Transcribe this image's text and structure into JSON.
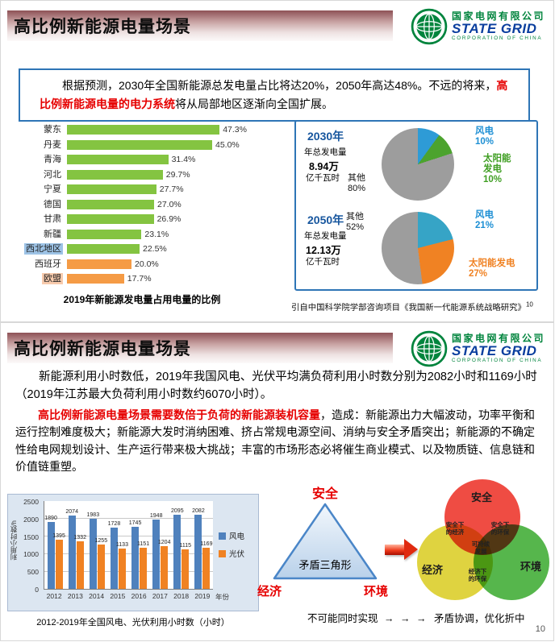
{
  "theme": {
    "emphasis_red": "#e60000",
    "box_border_blue": "#2e75b6",
    "logo_green": "#00843d",
    "logo_blue": "#0a3e9e",
    "title_band_red": "#8e5156"
  },
  "logo": {
    "company": "国家电网有限公司",
    "brand": "STATE GRID",
    "sub": "CORPORATION OF CHINA"
  },
  "slide1": {
    "title": "高比例新能源电量场景",
    "intro_pre": "根据预测，2030年全国新能源总发电量占比将达20%，2050年高达48%。不远的将来，",
    "intro_highlight": "高比例新能源电量的电力系统",
    "intro_post": "将从局部地区逐渐向全国扩展。",
    "source": "引自中国科学院学部咨询项目《我国新一代能源系统战略研究》",
    "source_sup": "10",
    "pies": {
      "p2030": {
        "gen_label": "年总发电量",
        "gen_value": "8.94万",
        "gen_unit": "亿千瓦时",
        "wind_name": "风电",
        "wind_pct": "10%",
        "solar_name_1": "太阳能",
        "solar_name_2": "发电",
        "solar_pct": "10%",
        "other_name": "其他",
        "other_pct": "80%"
      },
      "p2050": {
        "gen_label": "年总发电量",
        "gen_value": "12.13万",
        "gen_unit": "亿千瓦时",
        "wind_name": "风电",
        "wind_pct": "21%",
        "solar_name": "太阳能发电",
        "solar_pct": "27%",
        "other_name": "其他",
        "other_pct": "52%"
      }
    }
  },
  "slide2": {
    "title": "高比例新能源电量场景",
    "para1": "新能源利用小时数低，2019年我国风电、光伏平均满负荷利用小时数分别为2082小时和1169小时（2019年江苏最大负荷利用小时数约6070小时）。",
    "para2_red": "高比例新能源电量场景需要数倍于负荷的新能源装机容量",
    "para2_rest": "，造成：新能源出力大幅波动，功率平衡和运行控制难度极大；新能源大发时消纳困难、挤占常规电源空间、消纳与安全矛盾突出；新能源的不确定性给电网规划设计、生产运行带来极大挑战；丰富的市场形态必将催生商业模式、以及物质链、信息链和价值链重塑。",
    "triangle": {
      "top": "安全",
      "center": "矛盾三角形",
      "left": "经济",
      "right": "环境"
    },
    "venn": {
      "safety": "安全",
      "economy": "经济",
      "environment": "环境",
      "safety_economy": "安全下的经济",
      "safety_environment": "安全下的环保",
      "center": "可持续发展",
      "economy_environment": "经济下的环保"
    },
    "conclusion_left": "不可能同时实现",
    "conclusion_arrows": "→ → →",
    "conclusion_right": "矛盾协调，优化折中",
    "page_number": "10"
  },
  "chart_data": [
    {
      "type": "bar",
      "orientation": "horizontal",
      "title": "2019年新能源发电量占用电量的比例",
      "categories": [
        "蒙东",
        "丹麦",
        "青海",
        "河北",
        "宁夏",
        "德国",
        "甘肃",
        "新疆",
        "西北地区",
        "西班牙",
        "欧盟"
      ],
      "values": [
        47.3,
        45.0,
        31.4,
        29.7,
        27.7,
        27.0,
        26.9,
        23.1,
        22.5,
        20.0,
        17.7
      ],
      "value_labels": [
        "47.3%",
        "45.0%",
        "31.4%",
        "29.7%",
        "27.7%",
        "27.0%",
        "26.9%",
        "23.1%",
        "22.5%",
        "20.0%",
        "17.7%"
      ],
      "colors": [
        "#84c441",
        "#84c441",
        "#84c441",
        "#84c441",
        "#84c441",
        "#84c441",
        "#84c441",
        "#84c441",
        "#84c441",
        "#f59b45",
        "#f59b45"
      ],
      "highlighted_categories": {
        "西北地区": "#9dc3e6",
        "欧盟": "#f8cbad"
      },
      "xlim": [
        0,
        50
      ]
    },
    {
      "type": "pie",
      "title": "2030年",
      "subtitle": "年总发电量8.94万亿千瓦时",
      "labels": [
        "风电",
        "太阳能发电",
        "其他"
      ],
      "values": [
        10,
        10,
        80
      ],
      "colors": [
        "#2e9bd6",
        "#4ca32e",
        "#9d9d9d"
      ]
    },
    {
      "type": "pie",
      "title": "2050年",
      "subtitle": "年总发电量12.13万亿千瓦时",
      "labels": [
        "风电",
        "太阳能发电",
        "其他"
      ],
      "values": [
        21,
        27,
        52
      ],
      "colors": [
        "#36a4c6",
        "#f08223",
        "#9d9d9d"
      ]
    },
    {
      "type": "bar",
      "title": "2012-2019年全国风电、光伏利用小时数（小时）",
      "categories": [
        "2012",
        "2013",
        "2014",
        "2015",
        "2016",
        "2017",
        "2018",
        "2019"
      ],
      "series": [
        {
          "name": "风电",
          "color": "#4f81bd",
          "values": [
            1890,
            2074,
            1983,
            1728,
            1745,
            1948,
            2095,
            2082
          ]
        },
        {
          "name": "光伏",
          "color": "#f08223",
          "values": [
            1395,
            1332,
            1255,
            1133,
            1151,
            1204,
            1115,
            1169
          ]
        }
      ],
      "ylabel": "利用小时数/h",
      "xlabel": "年份",
      "ylim": [
        0,
        2500
      ],
      "yticks": [
        "2500",
        "2000",
        "1500",
        "1000",
        "500",
        "0"
      ]
    }
  ]
}
